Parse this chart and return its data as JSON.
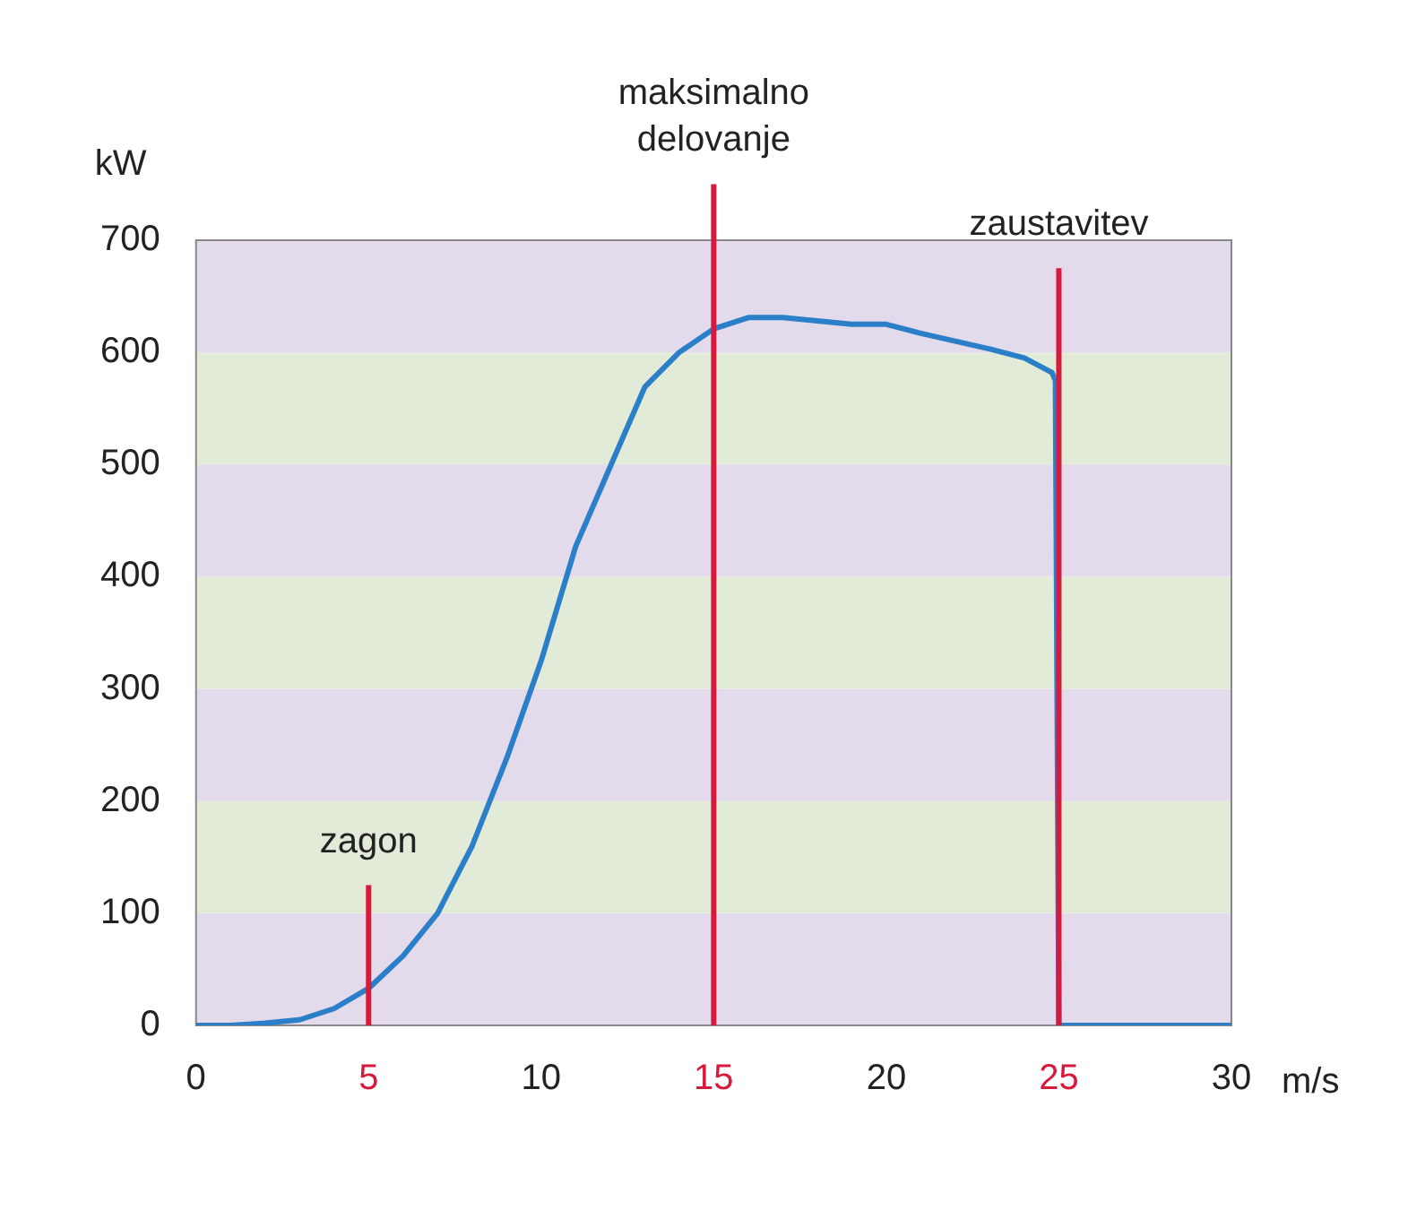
{
  "chart_data": {
    "type": "line",
    "xlabel": "m/s",
    "ylabel": "kW",
    "x": [
      0,
      1,
      2,
      3,
      4,
      5,
      6,
      7,
      8,
      9,
      10,
      11,
      12,
      13,
      14,
      15,
      16,
      17,
      18,
      19,
      20,
      21,
      22,
      23,
      24,
      24.8,
      24.9,
      25,
      30
    ],
    "series": [
      {
        "color": "#2a7fc8",
        "values": [
          0,
          0,
          2,
          5,
          15,
          33,
          62,
          100,
          160,
          238,
          325,
          427,
          498,
          569,
          600,
          621,
          631,
          631,
          628,
          625,
          625,
          617,
          610,
          603,
          595,
          582,
          575,
          0,
          0
        ]
      }
    ],
    "xlim": [
      0,
      30
    ],
    "xticks": [
      0,
      5,
      10,
      15,
      20,
      25,
      30
    ],
    "ylim": [
      0,
      700
    ],
    "yticks": [
      0,
      100,
      200,
      300,
      400,
      500,
      600,
      700
    ],
    "grid": false,
    "legend": false,
    "marker": "none",
    "line_style": "solid",
    "bands": [
      {
        "axis": "y",
        "from": 0,
        "to": 100,
        "color": "#e3dbec"
      },
      {
        "axis": "y",
        "from": 100,
        "to": 200,
        "color": "#e2ead8"
      },
      {
        "axis": "y",
        "from": 200,
        "to": 300,
        "color": "#e3dbec"
      },
      {
        "axis": "y",
        "from": 300,
        "to": 400,
        "color": "#e2ead8"
      },
      {
        "axis": "y",
        "from": 400,
        "to": 500,
        "color": "#e3dbec"
      },
      {
        "axis": "y",
        "from": 500,
        "to": 600,
        "color": "#e2ead8"
      },
      {
        "axis": "y",
        "from": 600,
        "to": 700,
        "color": "#e3dbec"
      }
    ],
    "ref_lines": [
      {
        "axis": "x",
        "value": 5,
        "color": "#d7193c"
      },
      {
        "axis": "x",
        "value": 15,
        "color": "#d7193c"
      },
      {
        "axis": "x",
        "value": 25,
        "color": "#d7193c"
      }
    ],
    "annotations": [
      {
        "text": "zagon",
        "x": 5,
        "y": 125
      },
      {
        "text": "maksimalno\ndelovanje",
        "x": 15,
        "y": 750
      },
      {
        "text": "zaustavitev",
        "x": 25,
        "y": 675
      }
    ]
  }
}
